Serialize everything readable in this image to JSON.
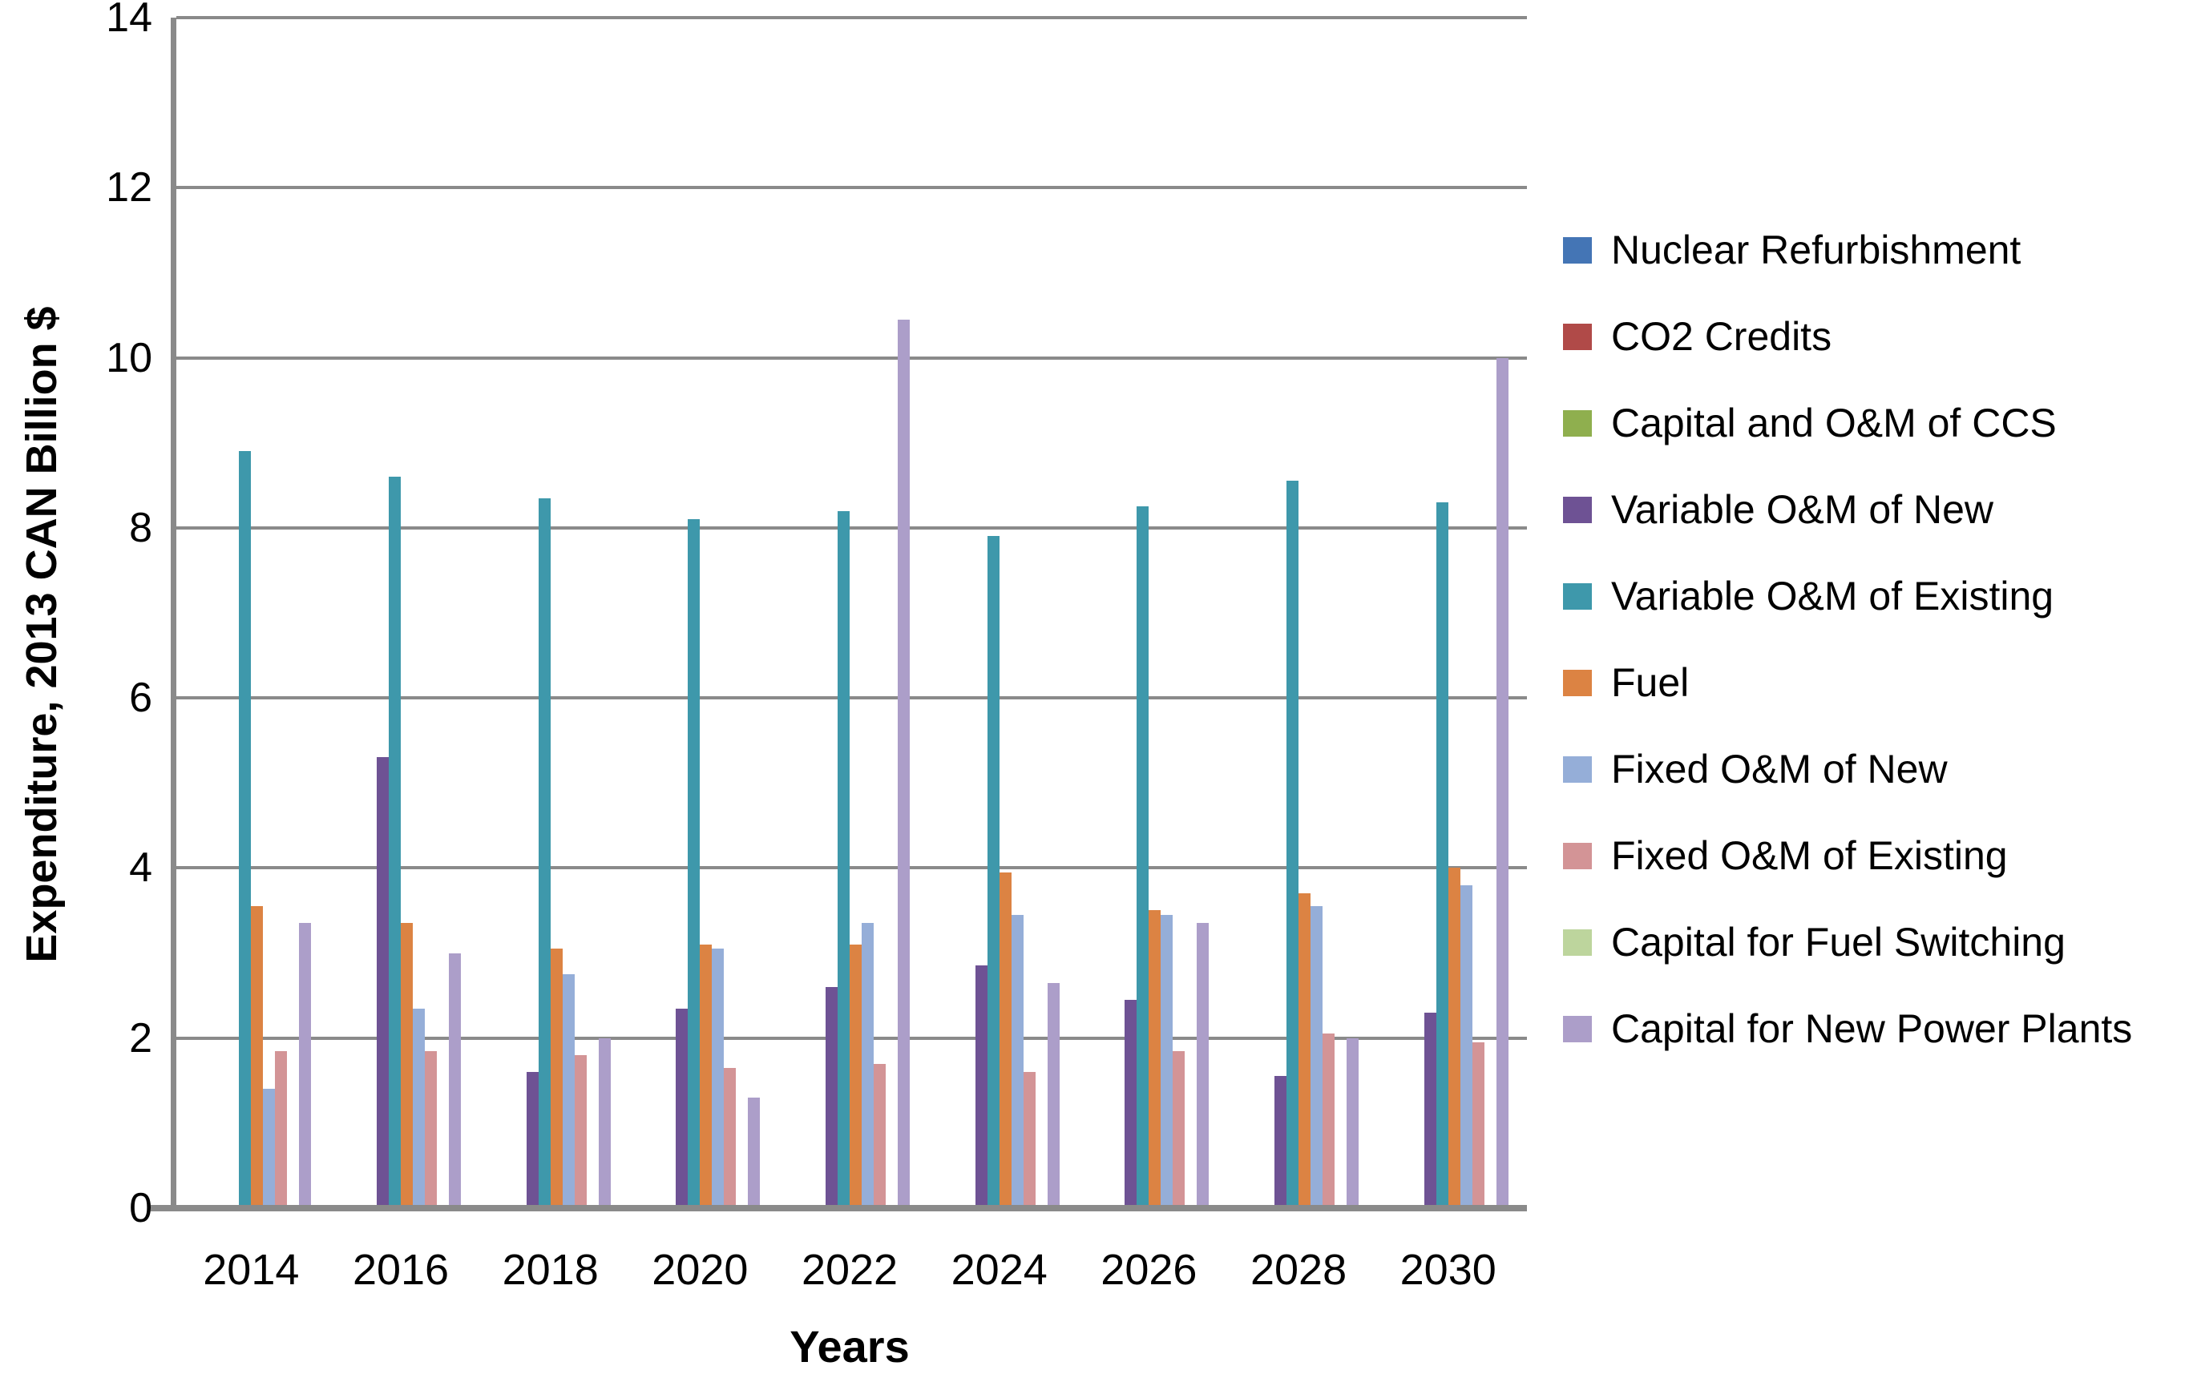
{
  "colors": {
    "background": "#FFFFFF",
    "gridline": "#8A8A8A",
    "axis_line": "#8A8A8A",
    "text": "#000000"
  },
  "chart_data": {
    "type": "bar",
    "title": "",
    "xlabel": "Years",
    "ylabel": "Expenditure, 2013 CAN Billion $",
    "ylim": [
      0,
      14
    ],
    "yticks": [
      0,
      2,
      4,
      6,
      8,
      10,
      12,
      14
    ],
    "grid": "horizontal",
    "legend_position": "right",
    "categories": [
      "2014",
      "2016",
      "2018",
      "2020",
      "2022",
      "2024",
      "2026",
      "2028",
      "2030"
    ],
    "series": [
      {
        "name": "Nuclear Refurbishment",
        "color": "#4475B5",
        "values": [
          0,
          0,
          0,
          0,
          0,
          0,
          0,
          0,
          0
        ]
      },
      {
        "name": "CO2 Credits",
        "color": "#B04A48",
        "values": [
          0,
          0,
          0,
          0,
          0,
          0,
          0,
          0,
          0
        ]
      },
      {
        "name": "Capital and O&M of CCS",
        "color": "#8FAF4E",
        "values": [
          0,
          0,
          0,
          0,
          0,
          0,
          0,
          0,
          0
        ]
      },
      {
        "name": "Variable  O&M of New",
        "color": "#6E5294",
        "values": [
          0,
          5.3,
          1.6,
          2.35,
          2.6,
          2.85,
          2.45,
          1.55,
          2.3
        ]
      },
      {
        "name": "Variable O&M of Existing",
        "color": "#3E98AB",
        "values": [
          8.9,
          8.6,
          8.35,
          8.1,
          8.2,
          7.9,
          8.25,
          8.55,
          8.3
        ]
      },
      {
        "name": "Fuel",
        "color": "#DC8343",
        "values": [
          3.55,
          3.35,
          3.05,
          3.1,
          3.1,
          3.95,
          3.5,
          3.7,
          4.0
        ]
      },
      {
        "name": "Fixed O&M of New",
        "color": "#95AED8",
        "values": [
          1.4,
          2.35,
          2.75,
          3.05,
          3.35,
          3.45,
          3.45,
          3.55,
          3.8
        ]
      },
      {
        "name": "Fixed O&M of Existing",
        "color": "#D39496",
        "values": [
          1.85,
          1.85,
          1.8,
          1.65,
          1.7,
          1.6,
          1.85,
          2.05,
          1.95
        ]
      },
      {
        "name": "Capital for Fuel Switching",
        "color": "#BDD59D",
        "values": [
          0,
          0,
          0,
          0,
          0,
          0,
          0,
          0,
          0
        ]
      },
      {
        "name": "Capital for New Power Plants",
        "color": "#AC9EC9",
        "values": [
          3.35,
          3.0,
          2.0,
          1.3,
          10.45,
          2.65,
          3.35,
          2.0,
          10.0
        ]
      }
    ]
  }
}
